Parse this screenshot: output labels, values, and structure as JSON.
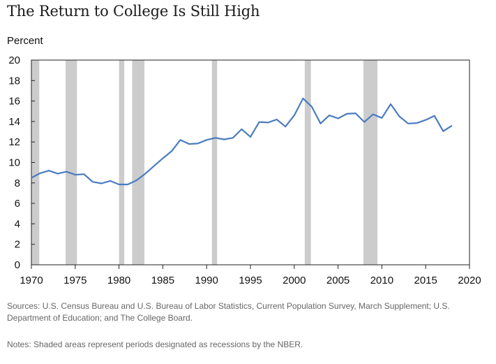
{
  "title": "The Return to College Is Still High",
  "sources": "Sources: U.S. Census Bureau and U.S. Bureau of Labor Statistics, Current Population Survey, March Supplement; U.S. Department of Education; and The College Board.",
  "notes": "Notes: Shaded areas represent periods designated as recessions by the NBER.",
  "chart_data": {
    "type": "line",
    "title": "The Return to College Is Still High",
    "ylabel": "Percent",
    "xlabel": "",
    "xlim": [
      1970,
      2020
    ],
    "ylim": [
      0,
      20
    ],
    "x_ticks": [
      1970,
      1975,
      1980,
      1985,
      1990,
      1995,
      2000,
      2005,
      2010,
      2015,
      2020
    ],
    "y_ticks": [
      0,
      2,
      4,
      6,
      8,
      10,
      12,
      14,
      16,
      18,
      20
    ],
    "grid": false,
    "line_color": "#4a7cc0",
    "recession_color": "#cccccc",
    "recessions": [
      [
        1970.0,
        1970.9
      ],
      [
        1973.9,
        1975.2
      ],
      [
        1980.0,
        1980.6
      ],
      [
        1981.5,
        1982.9
      ],
      [
        1990.6,
        1991.2
      ],
      [
        2001.2,
        2001.9
      ],
      [
        2007.9,
        2009.5
      ]
    ],
    "series": [
      {
        "x": [
          1970,
          1971,
          1972,
          1973,
          1974,
          1975,
          1976,
          1977,
          1978,
          1979,
          1980,
          1981,
          1982,
          1983,
          1984,
          1985,
          1986,
          1987,
          1988,
          1989,
          1990,
          1991,
          1992,
          1993,
          1994,
          1995,
          1996,
          1997,
          1998,
          1999,
          2000,
          2001,
          2002,
          2003,
          2004,
          2005,
          2006,
          2007,
          2008,
          2009,
          2010,
          2011,
          2012,
          2013,
          2014,
          2015,
          2016,
          2017,
          2018
        ],
        "values": [
          8.5,
          8.95,
          9.2,
          8.9,
          9.1,
          8.8,
          8.85,
          8.1,
          7.95,
          8.2,
          7.85,
          7.85,
          8.25,
          8.9,
          9.65,
          10.4,
          11.1,
          12.2,
          11.8,
          11.85,
          12.2,
          12.4,
          12.25,
          12.4,
          13.25,
          12.5,
          13.95,
          13.9,
          14.2,
          13.5,
          14.6,
          16.25,
          15.45,
          13.8,
          14.6,
          14.3,
          14.75,
          14.8,
          13.95,
          14.7,
          14.35,
          15.7,
          14.5,
          13.8,
          13.85,
          14.15,
          14.55,
          13.05,
          13.6
        ]
      }
    ]
  }
}
